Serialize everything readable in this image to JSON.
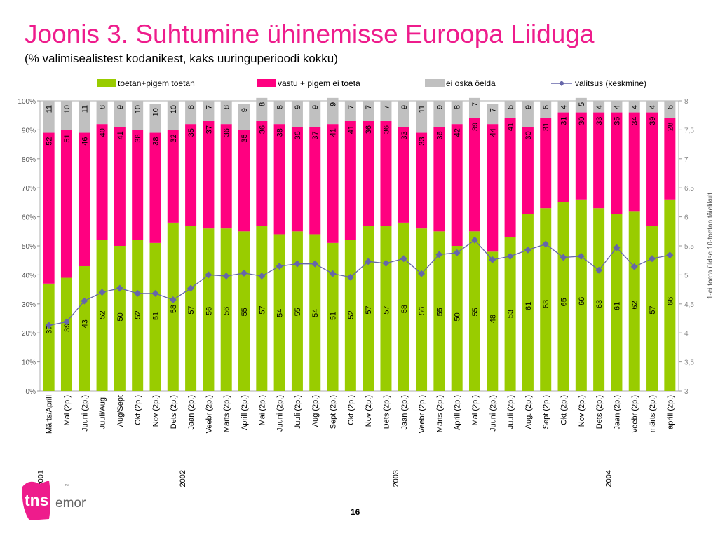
{
  "title": "Joonis 3. Suhtumine ühinemisse Euroopa Liiduga",
  "subtitle": "(% valimisealistest kodanikest, kaks uuringuperioodi kokku)",
  "page_number": "16",
  "logo": {
    "text_main": "tns",
    "text_brand": "emor",
    "tm": "™"
  },
  "colors": {
    "toetan": "#99cc00",
    "vastu": "#ff0080",
    "ei_oska": "#c0c0c0",
    "valitsus": "#6666aa",
    "title": "#ee1c8c"
  },
  "chart_data": {
    "type": "bar",
    "stacked": true,
    "categories": [
      "Märts/Aprill",
      "Mai (2p.)",
      "Juuni (2p.)",
      "Juuli/Aug.",
      "Aug/Sept",
      "Okt (2p.)",
      "Nov (2p.)",
      "Dets (2p.)",
      "Jaan (2p.)",
      "Veebr (2p.)",
      "Märts (2p.)",
      "Aprill (2p.)",
      "Mai (2p.)",
      "Juuni (2p.)",
      "Juuli (2p.)",
      "Aug (2p.)",
      "Sept (2p.)",
      "Okt (2p.)",
      "Nov (2p.)",
      "Dets (2p.)",
      "Jaan (2p.)",
      "Veebr (2p.)",
      "Märts (2p.)",
      "Aprill (2p.)",
      "Mai (2p.)",
      "Juuni (2p.)",
      "Juuli (2p.)",
      "Aug. (2p.)",
      "Sept (2p.)",
      "Okt (2p.)",
      "Nov (2p.)",
      "Dets (2p.)",
      "Jaan (2p.)",
      "veebr (2p.)",
      "märts (2p.)",
      "aprill (2p.)"
    ],
    "year_labels": [
      {
        "index": 0,
        "label": "2001"
      },
      {
        "index": 8,
        "label": "2002"
      },
      {
        "index": 20,
        "label": "2003"
      },
      {
        "index": 32,
        "label": "2004"
      }
    ],
    "series": [
      {
        "name": "toetan+pigem toetan",
        "values": [
          37,
          39,
          43,
          52,
          50,
          52,
          51,
          58,
          57,
          56,
          56,
          55,
          57,
          54,
          55,
          54,
          51,
          52,
          57,
          57,
          58,
          56,
          55,
          50,
          55,
          48,
          53,
          61,
          63,
          65,
          66,
          63,
          61,
          62,
          57,
          66
        ]
      },
      {
        "name": "vastu + pigem ei toeta",
        "values": [
          52,
          51,
          46,
          40,
          41,
          38,
          38,
          32,
          35,
          37,
          36,
          35,
          36,
          38,
          36,
          37,
          41,
          41,
          36,
          36,
          33,
          33,
          36,
          42,
          39,
          44,
          41,
          30,
          31,
          31,
          30,
          33,
          35,
          34,
          39,
          28
        ]
      },
      {
        "name": "ei oska öelda",
        "values": [
          11,
          10,
          11,
          8,
          9,
          10,
          10,
          10,
          8,
          7,
          8,
          9,
          8,
          8,
          9,
          9,
          9,
          7,
          7,
          7,
          9,
          11,
          9,
          8,
          7,
          7,
          6,
          9,
          6,
          4,
          5,
          4,
          4,
          4,
          4,
          6
        ]
      },
      {
        "name": "valitsus (keskmine)",
        "type": "line",
        "axis": "right",
        "values": [
          4.13,
          4.19,
          4.55,
          4.7,
          4.77,
          4.68,
          4.68,
          4.57,
          4.77,
          5.0,
          4.98,
          5.03,
          4.98,
          5.15,
          5.19,
          5.19,
          5.02,
          4.96,
          5.23,
          5.2,
          5.28,
          5.02,
          5.35,
          5.38,
          5.6,
          5.26,
          5.32,
          5.43,
          5.53,
          5.3,
          5.32,
          5.08,
          5.47,
          5.14,
          5.28,
          5.34
        ]
      }
    ],
    "y_left": {
      "min": 0,
      "max": 100,
      "ticks": [
        "0%",
        "10%",
        "20%",
        "30%",
        "40%",
        "50%",
        "60%",
        "70%",
        "80%",
        "90%",
        "100%"
      ]
    },
    "y_right": {
      "min": 3,
      "max": 8,
      "ticks": [
        "3",
        "3,5",
        "4",
        "4,5",
        "5",
        "5,5",
        "6",
        "6,5",
        "7",
        "7,5",
        "8"
      ],
      "label": "1-ei toeta üldse  10-toetan täielikult"
    },
    "legend": {
      "position": "top"
    }
  }
}
